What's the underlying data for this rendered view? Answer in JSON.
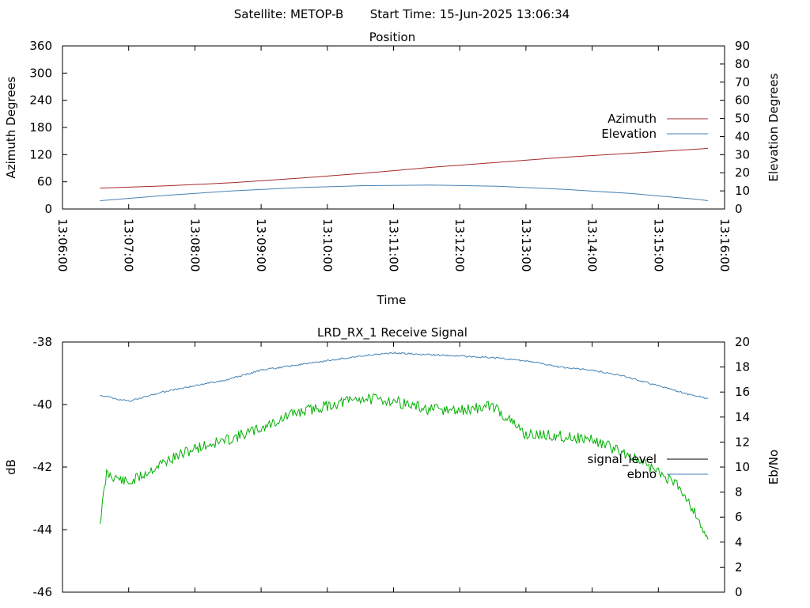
{
  "header": {
    "satellite_text": "Satellite: METOP-B",
    "start_time_text": "Start Time: 15-Jun-2025 13:06:34"
  },
  "chart_data": [
    {
      "id": "position",
      "type": "line",
      "title": "Position",
      "xlabel": "Time",
      "ylabel": "Azimuth Degrees",
      "y2label": "Elevation Degrees",
      "xlim": [
        "13:06:00",
        "13:16:00"
      ],
      "x_ticks": [
        "13:06:00",
        "13:07:00",
        "13:08:00",
        "13:09:00",
        "13:10:00",
        "13:11:00",
        "13:12:00",
        "13:13:00",
        "13:14:00",
        "13:15:00",
        "13:16:00"
      ],
      "ylim": [
        0,
        360
      ],
      "y_ticks": [
        0,
        60,
        120,
        180,
        240,
        300,
        360
      ],
      "y2lim": [
        0,
        90
      ],
      "y2_ticks": [
        0,
        10,
        20,
        30,
        40,
        50,
        60,
        70,
        80,
        90
      ],
      "legend": "right",
      "grid": false,
      "series": [
        {
          "name": "Azimuth",
          "axis": "y",
          "color": "#a52a2a",
          "x": [
            "13:06:34",
            "13:07:34",
            "13:08:34",
            "13:09:34",
            "13:10:34",
            "13:11:34",
            "13:12:34",
            "13:13:34",
            "13:14:34",
            "13:15:34",
            "13:15:45"
          ],
          "y": [
            46,
            51,
            58,
            68,
            79,
            92,
            103,
            114,
            123,
            132,
            134
          ]
        },
        {
          "name": "Elevation",
          "axis": "y2",
          "color": "#4682b4",
          "x": [
            "13:06:34",
            "13:07:34",
            "13:08:34",
            "13:09:34",
            "13:10:34",
            "13:11:34",
            "13:12:34",
            "13:13:34",
            "13:14:34",
            "13:15:34",
            "13:15:45"
          ],
          "y": [
            4.6,
            7.5,
            10,
            11.8,
            12.9,
            13.2,
            12.6,
            10.9,
            8.6,
            5.4,
            4.6
          ]
        }
      ]
    },
    {
      "id": "receive",
      "type": "line",
      "title": "LRD_RX_1 Receive Signal",
      "xlabel": "",
      "ylabel": "dB",
      "y2label": "Eb/No",
      "xlim": [
        "13:06:00",
        "13:16:00"
      ],
      "ylim": [
        -46,
        -38
      ],
      "y_ticks": [
        -46,
        -44,
        -42,
        -40,
        -38
      ],
      "y2lim": [
        0,
        20
      ],
      "y2_ticks": [
        0,
        2,
        4,
        6,
        8,
        10,
        12,
        14,
        16,
        18,
        20
      ],
      "legend": "right",
      "grid": false,
      "series": [
        {
          "name": "signal_level",
          "axis": "y",
          "color": "#4682b4",
          "x": [
            "13:06:34",
            "13:07:00",
            "13:07:30",
            "13:08:00",
            "13:08:30",
            "13:09:00",
            "13:09:30",
            "13:10:00",
            "13:10:30",
            "13:11:00",
            "13:11:30",
            "13:12:00",
            "13:12:30",
            "13:13:00",
            "13:13:30",
            "13:14:00",
            "13:14:30",
            "13:15:00",
            "13:15:30",
            "13:15:45"
          ],
          "y": [
            -39.7,
            -39.9,
            -39.6,
            -39.4,
            -39.2,
            -38.9,
            -38.75,
            -38.6,
            -38.45,
            -38.35,
            -38.4,
            -38.45,
            -38.5,
            -38.6,
            -38.8,
            -38.9,
            -39.1,
            -39.4,
            -39.7,
            -39.8
          ]
        },
        {
          "name": "ebno",
          "axis": "y2",
          "color": "#00b000",
          "x": [
            "13:06:34",
            "13:06:40",
            "13:07:00",
            "13:07:30",
            "13:08:00",
            "13:08:30",
            "13:09:00",
            "13:09:30",
            "13:10:00",
            "13:10:30",
            "13:11:00",
            "13:11:30",
            "13:12:00",
            "13:12:30",
            "13:13:00",
            "13:13:30",
            "13:14:00",
            "13:14:30",
            "13:15:00",
            "13:15:20",
            "13:15:35",
            "13:15:45"
          ],
          "y": [
            5.6,
            9.5,
            8.7,
            10.3,
            11.5,
            12.2,
            13.1,
            14.3,
            14.9,
            15.5,
            15.3,
            14.6,
            14.5,
            14.9,
            12.6,
            12.5,
            12.2,
            11.1,
            9.6,
            8.4,
            6.1,
            4.2
          ]
        }
      ]
    }
  ]
}
